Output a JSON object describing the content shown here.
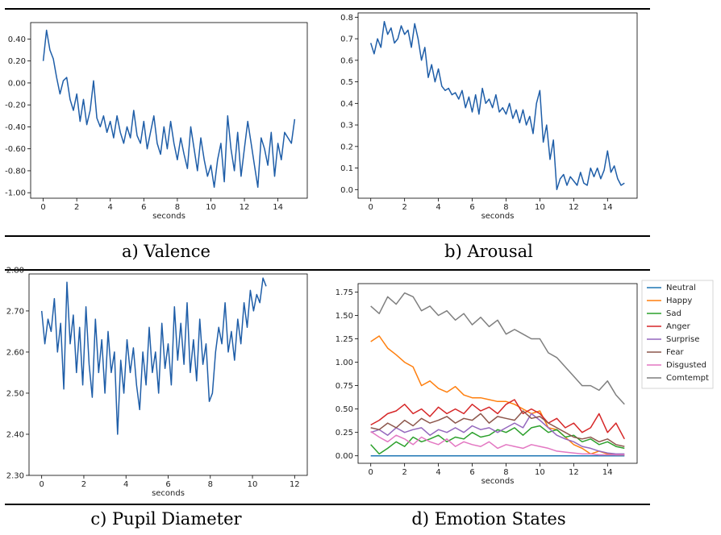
{
  "captions": [
    "a) Valence",
    "b) Arousal",
    "c) Pupil Diameter",
    "d) Emotion States"
  ],
  "chart_data": [
    {
      "type": "line",
      "xlabel": "seconds",
      "xlim": [
        -0.75,
        15.75
      ],
      "ylim": [
        -1.05,
        0.55
      ],
      "xticks": [
        0,
        2,
        4,
        6,
        8,
        10,
        12,
        14
      ],
      "yticks": [
        -1.0,
        -0.8,
        -0.6,
        -0.4,
        -0.2,
        0.0,
        0.2,
        0.4
      ],
      "colors": {
        "line": "#1f5ea8"
      },
      "series": [
        {
          "x": [
            0,
            0.2,
            0.4,
            0.6,
            0.8,
            1,
            1.2,
            1.4,
            1.6,
            1.8,
            2,
            2.2,
            2.4,
            2.6,
            2.8,
            3,
            3.2,
            3.4,
            3.6,
            3.8,
            4,
            4.2,
            4.4,
            4.6,
            4.8,
            5,
            5.2,
            5.4,
            5.6,
            5.8,
            6,
            6.2,
            6.4,
            6.6,
            6.8,
            7,
            7.2,
            7.4,
            7.6,
            7.8,
            8,
            8.2,
            8.4,
            8.6,
            8.8,
            9,
            9.2,
            9.4,
            9.6,
            9.8,
            10,
            10.2,
            10.4,
            10.6,
            10.8,
            11,
            11.2,
            11.4,
            11.6,
            11.8,
            12,
            12.2,
            12.4,
            12.6,
            12.8,
            13,
            13.2,
            13.4,
            13.6,
            13.8,
            14,
            14.2,
            14.4,
            14.6,
            14.8,
            15
          ],
          "values": [
            0.2,
            0.48,
            0.3,
            0.22,
            0.05,
            -0.1,
            0.02,
            0.05,
            -0.15,
            -0.25,
            -0.1,
            -0.35,
            -0.15,
            -0.38,
            -0.25,
            0.02,
            -0.32,
            -0.4,
            -0.3,
            -0.45,
            -0.35,
            -0.5,
            -0.3,
            -0.45,
            -0.55,
            -0.4,
            -0.5,
            -0.25,
            -0.48,
            -0.55,
            -0.35,
            -0.6,
            -0.45,
            -0.3,
            -0.55,
            -0.65,
            -0.4,
            -0.6,
            -0.35,
            -0.55,
            -0.7,
            -0.5,
            -0.65,
            -0.78,
            -0.4,
            -0.6,
            -0.8,
            -0.5,
            -0.7,
            -0.85,
            -0.75,
            -0.95,
            -0.7,
            -0.55,
            -0.9,
            -0.3,
            -0.6,
            -0.8,
            -0.45,
            -0.85,
            -0.6,
            -0.35,
            -0.55,
            -0.75,
            -0.95,
            -0.5,
            -0.6,
            -0.75,
            -0.45,
            -0.85,
            -0.55,
            -0.7,
            -0.45,
            -0.5,
            -0.55,
            -0.33
          ]
        }
      ]
    },
    {
      "type": "line",
      "xlabel": "seconds",
      "xlim": [
        -0.75,
        15.75
      ],
      "ylim": [
        -0.04,
        0.82
      ],
      "xticks": [
        0,
        2,
        4,
        6,
        8,
        10,
        12,
        14
      ],
      "yticks": [
        0.0,
        0.1,
        0.2,
        0.3,
        0.4,
        0.5,
        0.6,
        0.7,
        0.8
      ],
      "colors": {
        "line": "#1f5ea8"
      },
      "series": [
        {
          "x": [
            0,
            0.2,
            0.4,
            0.6,
            0.8,
            1,
            1.2,
            1.4,
            1.6,
            1.8,
            2,
            2.2,
            2.4,
            2.6,
            2.8,
            3,
            3.2,
            3.4,
            3.6,
            3.8,
            4,
            4.2,
            4.4,
            4.6,
            4.8,
            5,
            5.2,
            5.4,
            5.6,
            5.8,
            6,
            6.2,
            6.4,
            6.6,
            6.8,
            7,
            7.2,
            7.4,
            7.6,
            7.8,
            8,
            8.2,
            8.4,
            8.6,
            8.8,
            9,
            9.2,
            9.4,
            9.6,
            9.8,
            10,
            10.2,
            10.4,
            10.6,
            10.8,
            11,
            11.2,
            11.4,
            11.6,
            11.8,
            12,
            12.2,
            12.4,
            12.6,
            12.8,
            13,
            13.2,
            13.4,
            13.6,
            13.8,
            14,
            14.2,
            14.4,
            14.6,
            14.8,
            15
          ],
          "values": [
            0.68,
            0.63,
            0.7,
            0.66,
            0.78,
            0.72,
            0.75,
            0.68,
            0.7,
            0.76,
            0.72,
            0.74,
            0.66,
            0.77,
            0.7,
            0.6,
            0.66,
            0.52,
            0.58,
            0.5,
            0.56,
            0.48,
            0.46,
            0.47,
            0.44,
            0.45,
            0.42,
            0.46,
            0.38,
            0.43,
            0.36,
            0.44,
            0.35,
            0.47,
            0.4,
            0.42,
            0.38,
            0.44,
            0.36,
            0.38,
            0.35,
            0.4,
            0.33,
            0.37,
            0.31,
            0.37,
            0.3,
            0.34,
            0.26,
            0.4,
            0.46,
            0.22,
            0.3,
            0.14,
            0.23,
            0.0,
            0.05,
            0.07,
            0.02,
            0.06,
            0.04,
            0.02,
            0.08,
            0.03,
            0.02,
            0.1,
            0.06,
            0.1,
            0.05,
            0.09,
            0.18,
            0.08,
            0.11,
            0.05,
            0.02,
            0.03
          ]
        }
      ]
    },
    {
      "type": "line",
      "xlabel": "seconds",
      "xlim": [
        -0.6,
        12.6
      ],
      "ylim": [
        2.3,
        2.79
      ],
      "xticks": [
        0,
        2,
        4,
        6,
        8,
        10,
        12
      ],
      "yticks": [
        2.3,
        2.4,
        2.5,
        2.6,
        2.7,
        2.8
      ],
      "colors": {
        "line": "#1f5ea8"
      },
      "series": [
        {
          "x": [
            0,
            0.15,
            0.3,
            0.45,
            0.6,
            0.75,
            0.9,
            1.05,
            1.2,
            1.35,
            1.5,
            1.65,
            1.8,
            1.95,
            2.1,
            2.25,
            2.4,
            2.55,
            2.7,
            2.85,
            3,
            3.15,
            3.3,
            3.45,
            3.6,
            3.75,
            3.9,
            4.05,
            4.2,
            4.35,
            4.5,
            4.65,
            4.8,
            4.95,
            5.1,
            5.25,
            5.4,
            5.55,
            5.7,
            5.85,
            6,
            6.15,
            6.3,
            6.45,
            6.6,
            6.75,
            6.9,
            7.05,
            7.2,
            7.35,
            7.5,
            7.65,
            7.8,
            7.95,
            8.1,
            8.25,
            8.4,
            8.55,
            8.7,
            8.85,
            9,
            9.15,
            9.3,
            9.45,
            9.6,
            9.75,
            9.9,
            10.05,
            10.2,
            10.35,
            10.5,
            10.65
          ],
          "values": [
            2.7,
            2.62,
            2.68,
            2.65,
            2.73,
            2.6,
            2.67,
            2.51,
            2.77,
            2.62,
            2.69,
            2.55,
            2.66,
            2.52,
            2.71,
            2.57,
            2.49,
            2.68,
            2.55,
            2.63,
            2.5,
            2.65,
            2.55,
            2.6,
            2.4,
            2.58,
            2.5,
            2.63,
            2.55,
            2.61,
            2.52,
            2.46,
            2.6,
            2.52,
            2.66,
            2.55,
            2.6,
            2.5,
            2.67,
            2.56,
            2.62,
            2.52,
            2.71,
            2.58,
            2.67,
            2.57,
            2.72,
            2.55,
            2.63,
            2.53,
            2.68,
            2.57,
            2.62,
            2.48,
            2.5,
            2.6,
            2.66,
            2.62,
            2.72,
            2.6,
            2.65,
            2.58,
            2.68,
            2.62,
            2.72,
            2.66,
            2.75,
            2.7,
            2.74,
            2.72,
            2.78,
            2.76
          ]
        }
      ]
    },
    {
      "type": "line",
      "xlabel": "seconds",
      "xlim": [
        -0.75,
        15.75
      ],
      "ylim": [
        -0.08,
        1.84
      ],
      "xticks": [
        0,
        2,
        4,
        6,
        8,
        10,
        12,
        14
      ],
      "yticks": [
        0.0,
        0.25,
        0.5,
        0.75,
        1.0,
        1.25,
        1.5,
        1.75
      ],
      "legend": "outside-right",
      "x": [
        0,
        0.5,
        1,
        1.5,
        2,
        2.5,
        3,
        3.5,
        4,
        4.5,
        5,
        5.5,
        6,
        6.5,
        7,
        7.5,
        8,
        8.5,
        9,
        9.5,
        10,
        10.5,
        11,
        11.5,
        12,
        12.5,
        13,
        13.5,
        14,
        14.5,
        15
      ],
      "series": [
        {
          "name": "Neutral",
          "color": "#1f77b4",
          "values": [
            0,
            0,
            0,
            0,
            0,
            0,
            0,
            0,
            0,
            0,
            0,
            0,
            0,
            0,
            0,
            0,
            0,
            0,
            0,
            0,
            0,
            0,
            0,
            0,
            0,
            0,
            0,
            0,
            0,
            0,
            0
          ]
        },
        {
          "name": "Happy",
          "color": "#ff7f0e",
          "values": [
            1.22,
            1.28,
            1.15,
            1.08,
            1.0,
            0.95,
            0.75,
            0.8,
            0.72,
            0.68,
            0.74,
            0.65,
            0.62,
            0.62,
            0.6,
            0.58,
            0.58,
            0.55,
            0.5,
            0.45,
            0.48,
            0.3,
            0.28,
            0.2,
            0.12,
            0.08,
            0.02,
            0.05,
            0.02,
            0.01,
            0.01
          ]
        },
        {
          "name": "Sad",
          "color": "#2ca02c",
          "values": [
            0.12,
            0.02,
            0.08,
            0.15,
            0.1,
            0.2,
            0.15,
            0.18,
            0.22,
            0.15,
            0.2,
            0.18,
            0.25,
            0.2,
            0.22,
            0.28,
            0.25,
            0.3,
            0.22,
            0.3,
            0.32,
            0.25,
            0.28,
            0.2,
            0.22,
            0.15,
            0.18,
            0.12,
            0.15,
            0.1,
            0.08
          ]
        },
        {
          "name": "Anger",
          "color": "#d62728",
          "values": [
            0.33,
            0.38,
            0.45,
            0.48,
            0.55,
            0.45,
            0.5,
            0.42,
            0.52,
            0.45,
            0.5,
            0.45,
            0.55,
            0.48,
            0.52,
            0.45,
            0.55,
            0.6,
            0.45,
            0.5,
            0.45,
            0.35,
            0.4,
            0.3,
            0.35,
            0.25,
            0.3,
            0.45,
            0.25,
            0.35,
            0.18
          ]
        },
        {
          "name": "Surprise",
          "color": "#9467bd",
          "values": [
            0.25,
            0.28,
            0.22,
            0.3,
            0.25,
            0.28,
            0.3,
            0.22,
            0.28,
            0.25,
            0.3,
            0.25,
            0.32,
            0.28,
            0.3,
            0.25,
            0.3,
            0.35,
            0.3,
            0.45,
            0.38,
            0.3,
            0.22,
            0.18,
            0.15,
            0.1,
            0.08,
            0.05,
            0.03,
            0.02,
            0.02
          ]
        },
        {
          "name": "Fear",
          "color": "#8c564b",
          "values": [
            0.3,
            0.28,
            0.35,
            0.3,
            0.38,
            0.32,
            0.4,
            0.35,
            0.38,
            0.42,
            0.35,
            0.4,
            0.38,
            0.45,
            0.35,
            0.42,
            0.4,
            0.38,
            0.48,
            0.4,
            0.42,
            0.35,
            0.3,
            0.25,
            0.2,
            0.18,
            0.2,
            0.15,
            0.18,
            0.12,
            0.1
          ]
        },
        {
          "name": "Disgusted",
          "color": "#e377c2",
          "values": [
            0.26,
            0.2,
            0.15,
            0.22,
            0.18,
            0.12,
            0.2,
            0.15,
            0.12,
            0.18,
            0.1,
            0.15,
            0.12,
            0.1,
            0.15,
            0.08,
            0.12,
            0.1,
            0.08,
            0.12,
            0.1,
            0.08,
            0.05,
            0.04,
            0.03,
            0.02,
            0.02,
            0.01,
            0.01,
            0.01,
            0.01
          ]
        },
        {
          "name": "Comtempt",
          "color": "#7f7f7f",
          "values": [
            1.6,
            1.52,
            1.7,
            1.62,
            1.74,
            1.7,
            1.55,
            1.6,
            1.5,
            1.55,
            1.45,
            1.52,
            1.4,
            1.48,
            1.38,
            1.45,
            1.3,
            1.35,
            1.3,
            1.25,
            1.25,
            1.1,
            1.05,
            0.95,
            0.85,
            0.75,
            0.75,
            0.7,
            0.8,
            0.65,
            0.55
          ]
        }
      ]
    }
  ]
}
